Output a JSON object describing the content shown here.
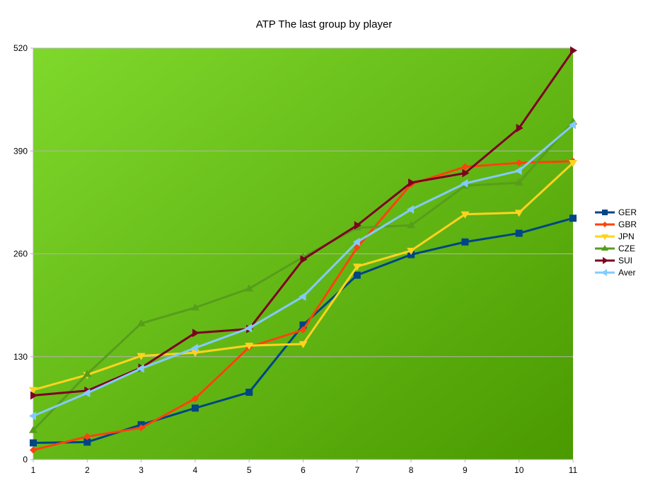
{
  "chart_data": {
    "type": "line",
    "title": "ATP The last group by player",
    "xlabel": "",
    "ylabel": "",
    "x": [
      1,
      2,
      3,
      4,
      5,
      6,
      7,
      8,
      9,
      10,
      11
    ],
    "ylim": [
      0,
      520
    ],
    "yticks": [
      0,
      130,
      260,
      390,
      520
    ],
    "grid": true,
    "legend_position": "right",
    "plot_background": [
      "#7fd82c",
      "#4a9a00"
    ],
    "series": [
      {
        "name": "GER",
        "color": "#004586",
        "marker": "square",
        "values": [
          21,
          22,
          44,
          65,
          85,
          170,
          233,
          259,
          275,
          286,
          305
        ]
      },
      {
        "name": "GBR",
        "color": "#ff420e",
        "marker": "diamond",
        "values": [
          12,
          29,
          40,
          77,
          142,
          164,
          268,
          348,
          370,
          375,
          377
        ]
      },
      {
        "name": "JPN",
        "color": "#ffd320",
        "marker": "triangle-down",
        "values": [
          88,
          107,
          131,
          135,
          144,
          146,
          244,
          264,
          310,
          312,
          375
        ]
      },
      {
        "name": "CZE",
        "color": "#579d1c",
        "marker": "triangle-up",
        "values": [
          37,
          108,
          172,
          192,
          216,
          256,
          293,
          296,
          346,
          350,
          427
        ]
      },
      {
        "name": "SUI",
        "color": "#7e0021",
        "marker": "triangle-right",
        "values": [
          81,
          87,
          116,
          160,
          165,
          253,
          296,
          350,
          362,
          419,
          517
        ]
      },
      {
        "name": "Aver",
        "color": "#83caff",
        "marker": "triangle-left",
        "values": [
          55,
          84,
          115,
          141,
          166,
          206,
          275,
          316,
          349,
          365,
          423
        ]
      }
    ]
  }
}
